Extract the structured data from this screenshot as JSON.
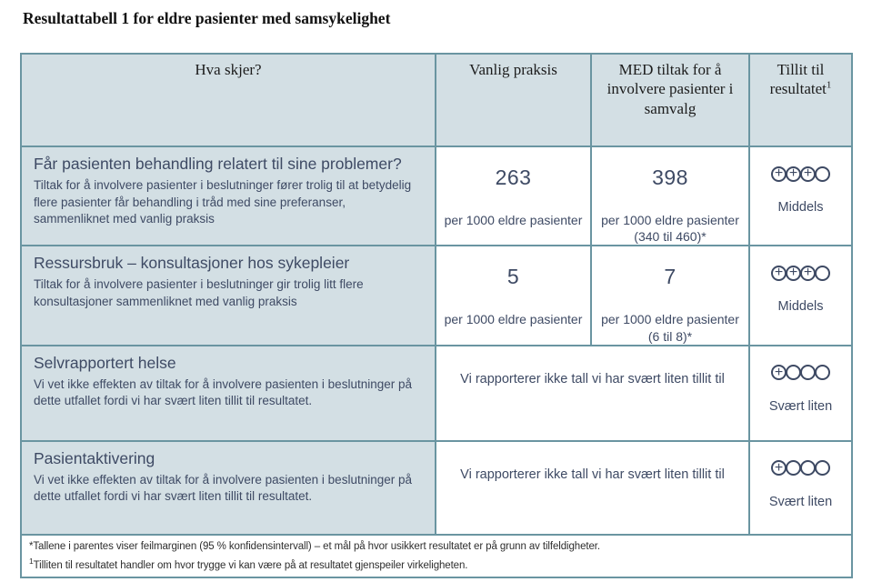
{
  "page_title": "Resultattabell 1 for eldre pasienter med samsykelighet",
  "table": {
    "headers": {
      "outcome": "Hva skjer?",
      "comparison": "Vanlig praksis",
      "intervention": "MED tiltak for å involvere pasienter i samvalg",
      "certainty": "Tillit til resultatet",
      "certainty_superscript": "1"
    },
    "rows": [
      {
        "title": "Får pasienten behandling relatert til sine problemer?",
        "description": "Tiltak for å involvere pasienter i beslutninger fører trolig til at betydelig flere pasienter får behandling i tråd med sine preferanser, sammenliknet med vanlig praksis",
        "comparison_value": "263",
        "comparison_unit": "per 1000 eldre pasienter",
        "intervention_value": "398",
        "intervention_unit": "per 1000 eldre pasienter",
        "intervention_ci": "(340 til 460)*",
        "certainty": {
          "filled": 3,
          "total": 4,
          "label": "Middels"
        }
      },
      {
        "title": "Ressursbruk – konsultasjoner hos sykepleier",
        "description": "Tiltak for å involvere pasienter i beslutninger gir trolig litt flere konsultasjoner sammenliknet med vanlig praksis",
        "comparison_value": "5",
        "comparison_unit": "per 1000 eldre pasienter",
        "intervention_value": "7",
        "intervention_unit": "per 1000 eldre pasienter",
        "intervention_ci": "(6 til 8)*",
        "certainty": {
          "filled": 3,
          "total": 4,
          "label": "Middels"
        }
      },
      {
        "title": "Selvrapportert helse",
        "description": "Vi vet ikke effekten av tiltak for å involvere pasienten i beslutninger på dette utfallet fordi vi har svært liten tillit til resultatet.",
        "merged_note": "Vi rapporterer ikke tall vi har svært liten tillit til",
        "certainty": {
          "filled": 1,
          "total": 4,
          "label": "Svært liten"
        }
      },
      {
        "title": "Pasientaktivering",
        "description": "Vi vet ikke effekten av tiltak for å involvere pasienten i beslutninger på dette utfallet fordi vi har svært liten tillit til resultatet.",
        "merged_note": "Vi rapporterer ikke tall vi har svært liten tillit til",
        "certainty": {
          "filled": 1,
          "total": 4,
          "label": "Svært liten"
        }
      }
    ],
    "footnotes": [
      {
        "marker": "*",
        "text": "Tallene i parentes viser feilmarginen (95 % konfidensintervall) – et mål på hvor usikkert resultatet er på grunn av tilfeldigheter."
      },
      {
        "marker": "1",
        "text": "Tilliten til resultatet handler om hvor trygge vi kan være på at resultatet gjenspeiler virkeligheten."
      }
    ]
  },
  "colors": {
    "border": "#6a95a1",
    "cell_background": "#d3dfe4",
    "text": "#3e4a64"
  }
}
